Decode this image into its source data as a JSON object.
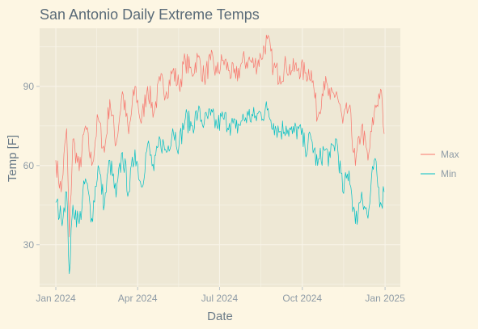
{
  "chart_data": {
    "type": "line",
    "title": "San Antonio Daily Extreme Temps",
    "xlabel": "Date",
    "ylabel": "Temp [F]",
    "xlim": [
      "2023-12-14",
      "2025-01-18"
    ],
    "ylim": [
      14,
      112
    ],
    "x_ticks": [
      {
        "value": "2024-01-01",
        "label": "Jan 2024"
      },
      {
        "value": "2024-04-01",
        "label": "Apr 2024"
      },
      {
        "value": "2024-07-01",
        "label": "Jul 2024"
      },
      {
        "value": "2024-10-01",
        "label": "Oct 2024"
      },
      {
        "value": "2025-01-01",
        "label": "Jan 2025"
      }
    ],
    "y_ticks": [
      30,
      60,
      90
    ],
    "grid": true,
    "legend_position": "right",
    "colors": {
      "panel_background": "#eee8d5",
      "plot_background": "#fdf6e3",
      "grid": "#f8f4e9",
      "max": "#f8766d",
      "min": "#00bfc4"
    },
    "series": [
      {
        "name": "Max",
        "points": [
          [
            "2024-01-01",
            62
          ],
          [
            "2024-01-07",
            50
          ],
          [
            "2024-01-13",
            74
          ],
          [
            "2024-01-16",
            33
          ],
          [
            "2024-01-20",
            70
          ],
          [
            "2024-01-27",
            58
          ],
          [
            "2024-02-03",
            75
          ],
          [
            "2024-02-10",
            60
          ],
          [
            "2024-02-17",
            78
          ],
          [
            "2024-02-24",
            65
          ],
          [
            "2024-03-01",
            85
          ],
          [
            "2024-03-08",
            68
          ],
          [
            "2024-03-15",
            88
          ],
          [
            "2024-03-22",
            72
          ],
          [
            "2024-03-29",
            90
          ],
          [
            "2024-04-05",
            76
          ],
          [
            "2024-04-12",
            90
          ],
          [
            "2024-04-19",
            80
          ],
          [
            "2024-04-26",
            92
          ],
          [
            "2024-05-03",
            88
          ],
          [
            "2024-05-10",
            96
          ],
          [
            "2024-05-17",
            90
          ],
          [
            "2024-05-24",
            100
          ],
          [
            "2024-05-31",
            95
          ],
          [
            "2024-06-07",
            101
          ],
          [
            "2024-06-14",
            93
          ],
          [
            "2024-06-21",
            100
          ],
          [
            "2024-06-28",
            95
          ],
          [
            "2024-07-05",
            100
          ],
          [
            "2024-07-12",
            96
          ],
          [
            "2024-07-19",
            93
          ],
          [
            "2024-07-26",
            99
          ],
          [
            "2024-08-02",
            100
          ],
          [
            "2024-08-09",
            98
          ],
          [
            "2024-08-16",
            101
          ],
          [
            "2024-08-23",
            108
          ],
          [
            "2024-08-30",
            97
          ],
          [
            "2024-09-06",
            94
          ],
          [
            "2024-09-13",
            98
          ],
          [
            "2024-09-20",
            96
          ],
          [
            "2024-09-27",
            97
          ],
          [
            "2024-10-04",
            95
          ],
          [
            "2024-10-11",
            96
          ],
          [
            "2024-10-18",
            78
          ],
          [
            "2024-10-25",
            92
          ],
          [
            "2024-11-01",
            85
          ],
          [
            "2024-11-08",
            88
          ],
          [
            "2024-11-15",
            76
          ],
          [
            "2024-11-22",
            82
          ],
          [
            "2024-11-29",
            60
          ],
          [
            "2024-12-06",
            75
          ],
          [
            "2024-12-13",
            62
          ],
          [
            "2024-12-20",
            80
          ],
          [
            "2024-12-27",
            89
          ],
          [
            "2024-12-31",
            72
          ]
        ]
      },
      {
        "name": "Min",
        "points": [
          [
            "2024-01-01",
            46
          ],
          [
            "2024-01-07",
            40
          ],
          [
            "2024-01-13",
            50
          ],
          [
            "2024-01-16",
            19
          ],
          [
            "2024-01-20",
            45
          ],
          [
            "2024-01-27",
            38
          ],
          [
            "2024-02-03",
            55
          ],
          [
            "2024-02-10",
            40
          ],
          [
            "2024-02-17",
            60
          ],
          [
            "2024-02-24",
            45
          ],
          [
            "2024-03-01",
            62
          ],
          [
            "2024-03-08",
            48
          ],
          [
            "2024-03-15",
            65
          ],
          [
            "2024-03-22",
            50
          ],
          [
            "2024-03-29",
            66
          ],
          [
            "2024-04-05",
            52
          ],
          [
            "2024-04-12",
            68
          ],
          [
            "2024-04-19",
            58
          ],
          [
            "2024-04-26",
            70
          ],
          [
            "2024-05-03",
            65
          ],
          [
            "2024-05-10",
            74
          ],
          [
            "2024-05-17",
            68
          ],
          [
            "2024-05-24",
            78
          ],
          [
            "2024-05-31",
            75
          ],
          [
            "2024-06-07",
            80
          ],
          [
            "2024-06-14",
            76
          ],
          [
            "2024-06-21",
            79
          ],
          [
            "2024-06-28",
            75
          ],
          [
            "2024-07-05",
            78
          ],
          [
            "2024-07-12",
            76
          ],
          [
            "2024-07-19",
            74
          ],
          [
            "2024-07-26",
            77
          ],
          [
            "2024-08-02",
            79
          ],
          [
            "2024-08-09",
            78
          ],
          [
            "2024-08-16",
            80
          ],
          [
            "2024-08-23",
            81
          ],
          [
            "2024-08-30",
            76
          ],
          [
            "2024-09-06",
            73
          ],
          [
            "2024-09-13",
            75
          ],
          [
            "2024-09-20",
            72
          ],
          [
            "2024-09-27",
            74
          ],
          [
            "2024-10-04",
            67
          ],
          [
            "2024-10-11",
            70
          ],
          [
            "2024-10-18",
            60
          ],
          [
            "2024-10-25",
            66
          ],
          [
            "2024-11-01",
            63
          ],
          [
            "2024-11-08",
            70
          ],
          [
            "2024-11-15",
            50
          ],
          [
            "2024-11-22",
            58
          ],
          [
            "2024-11-29",
            38
          ],
          [
            "2024-12-06",
            50
          ],
          [
            "2024-12-13",
            40
          ],
          [
            "2024-12-20",
            62
          ],
          [
            "2024-12-27",
            46
          ],
          [
            "2024-12-31",
            50
          ]
        ]
      }
    ]
  }
}
